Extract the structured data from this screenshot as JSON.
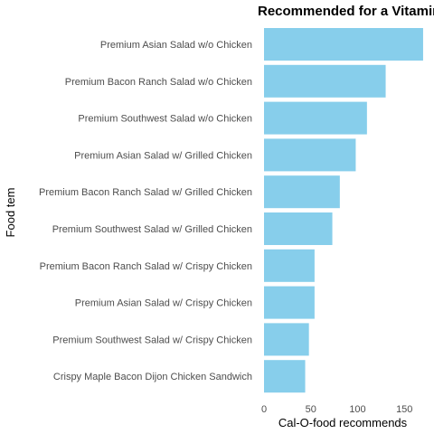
{
  "chart_data": {
    "type": "bar",
    "orientation": "horizontal",
    "title": "Recommended for a Vitamin C",
    "xlabel": "Cal-O-food recommends",
    "ylabel": "Food tem",
    "categories": [
      "Premium Asian Salad w/o Chicken",
      "Premium Bacon Ranch Salad w/o Chicken",
      "Premium Southwest Salad w/o Chicken",
      "Premium Asian Salad w/ Grilled Chicken",
      "Premium Bacon Ranch Salad w/ Grilled Chicken",
      "Premium Southwest Salad w/ Grilled Chicken",
      "Premium Bacon Ranch Salad w/ Crispy Chicken",
      "Premium Asian Salad w/ Crispy Chicken",
      "Premium Southwest Salad w/ Crispy Chicken",
      "Crispy Maple Bacon Dijon Chicken Sandwich"
    ],
    "values": [
      170,
      130,
      110,
      98,
      81,
      73,
      54,
      54,
      48,
      44
    ],
    "xlim": [
      0,
      175
    ],
    "xticks": [
      0,
      50,
      100,
      150
    ],
    "bar_color": "#87CEEB",
    "grid": false,
    "legend": "none"
  }
}
